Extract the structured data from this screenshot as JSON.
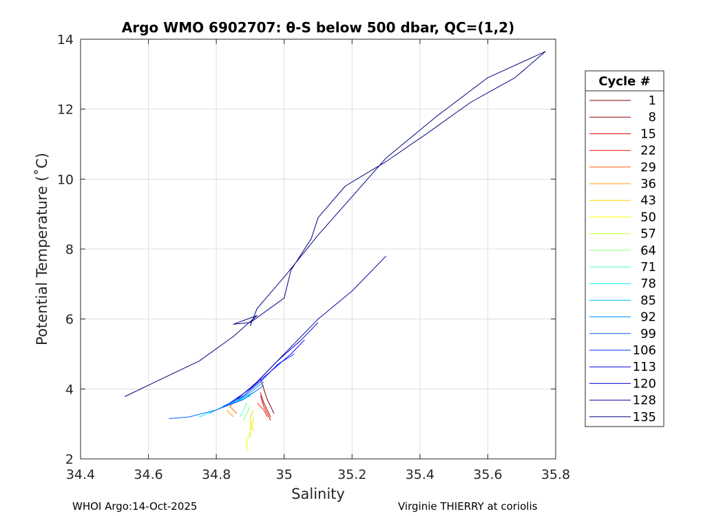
{
  "footer": {
    "left": "WHOI Argo:14-Oct-2025",
    "right": "Virginie THIERRY at coriolis"
  },
  "chart_data": {
    "type": "line",
    "title": "Argo WMO 6902707: θ-S below 500 dbar,  QC=(1,2)",
    "xlabel": "Salinity",
    "ylabel": "Potential Temperature (˚C)",
    "xlim": [
      34.4,
      35.8
    ],
    "ylim": [
      2,
      14
    ],
    "xticks": [
      "34.4",
      "34.6",
      "34.8",
      "35",
      "35.2",
      "35.4",
      "35.6",
      "35.8"
    ],
    "yticks": [
      "2",
      "4",
      "6",
      "8",
      "10",
      "12",
      "14"
    ],
    "grid": true,
    "legend_position": "right",
    "legend_title": "Cycle #",
    "series": [
      {
        "name": "1",
        "color": "#7f0000",
        "points": [
          [
            34.97,
            3.3
          ],
          [
            34.96,
            3.5
          ],
          [
            34.95,
            3.7
          ],
          [
            34.94,
            4.0
          ],
          [
            34.93,
            4.3
          ]
        ]
      },
      {
        "name": "8",
        "color": "#a00000",
        "points": [
          [
            34.96,
            3.2
          ],
          [
            34.95,
            3.4
          ],
          [
            34.94,
            3.6
          ],
          [
            34.93,
            3.9
          ]
        ]
      },
      {
        "name": "15",
        "color": "#d40000",
        "points": [
          [
            34.96,
            3.1
          ],
          [
            34.95,
            3.3
          ],
          [
            34.94,
            3.5
          ],
          [
            34.93,
            3.8
          ]
        ]
      },
      {
        "name": "22",
        "color": "#ff1a00",
        "points": [
          [
            34.95,
            3.2
          ],
          [
            34.94,
            3.4
          ],
          [
            34.92,
            3.6
          ]
        ]
      },
      {
        "name": "29",
        "color": "#ff5a00",
        "points": [
          [
            34.86,
            3.3
          ],
          [
            34.85,
            3.4
          ],
          [
            34.84,
            3.5
          ],
          [
            34.85,
            3.6
          ]
        ]
      },
      {
        "name": "36",
        "color": "#ff9a00",
        "points": [
          [
            34.85,
            3.2
          ],
          [
            34.84,
            3.3
          ],
          [
            34.83,
            3.4
          ]
        ]
      },
      {
        "name": "43",
        "color": "#ffd000",
        "points": [
          [
            34.91,
            2.8
          ],
          [
            34.9,
            3.0
          ],
          [
            34.9,
            3.2
          ],
          [
            34.91,
            3.4
          ]
        ]
      },
      {
        "name": "50",
        "color": "#ffff00",
        "points": [
          [
            34.89,
            2.2
          ],
          [
            34.89,
            2.5
          ],
          [
            34.9,
            2.8
          ],
          [
            34.91,
            3.1
          ]
        ]
      },
      {
        "name": "57",
        "color": "#c0ff40",
        "points": [
          [
            34.9,
            2.6
          ],
          [
            34.9,
            2.9
          ],
          [
            34.91,
            3.2
          ]
        ]
      },
      {
        "name": "64",
        "color": "#80ff80",
        "points": [
          [
            34.88,
            3.1
          ],
          [
            34.89,
            3.3
          ],
          [
            34.9,
            3.5
          ]
        ]
      },
      {
        "name": "71",
        "color": "#40ffbf",
        "points": [
          [
            34.87,
            3.2
          ],
          [
            34.88,
            3.4
          ],
          [
            34.89,
            3.6
          ]
        ]
      },
      {
        "name": "78",
        "color": "#00f0ff",
        "points": [
          [
            34.75,
            3.2
          ],
          [
            34.8,
            3.4
          ],
          [
            34.85,
            3.6
          ],
          [
            34.9,
            3.8
          ]
        ]
      },
      {
        "name": "85",
        "color": "#00c0ff",
        "points": [
          [
            34.78,
            3.3
          ],
          [
            34.82,
            3.5
          ],
          [
            34.87,
            3.7
          ],
          [
            34.91,
            3.9
          ]
        ]
      },
      {
        "name": "92",
        "color": "#0090ff",
        "points": [
          [
            34.8,
            3.4
          ],
          [
            34.85,
            3.6
          ],
          [
            34.9,
            3.9
          ],
          [
            34.94,
            4.2
          ]
        ]
      },
      {
        "name": "99",
        "color": "#0060ff",
        "points": [
          [
            34.66,
            3.15
          ],
          [
            34.72,
            3.2
          ],
          [
            34.8,
            3.4
          ],
          [
            34.88,
            3.7
          ],
          [
            34.94,
            4.1
          ]
        ]
      },
      {
        "name": "106",
        "color": "#0030ff",
        "points": [
          [
            34.82,
            3.5
          ],
          [
            34.88,
            3.8
          ],
          [
            34.93,
            4.2
          ],
          [
            34.98,
            4.7
          ],
          [
            35.03,
            5.0
          ]
        ]
      },
      {
        "name": "113",
        "color": "#0000ff",
        "points": [
          [
            34.84,
            3.6
          ],
          [
            34.9,
            4.0
          ],
          [
            34.96,
            4.5
          ],
          [
            35.02,
            5.0
          ],
          [
            35.06,
            5.4
          ]
        ]
      },
      {
        "name": "120",
        "color": "#0000d0",
        "points": [
          [
            34.86,
            3.7
          ],
          [
            34.92,
            4.2
          ],
          [
            34.98,
            4.8
          ],
          [
            35.05,
            5.4
          ],
          [
            35.1,
            5.9
          ]
        ]
      },
      {
        "name": "128",
        "color": "#0000a0",
        "points": [
          [
            34.9,
            4.0
          ],
          [
            34.96,
            4.6
          ],
          [
            35.03,
            5.3
          ],
          [
            35.1,
            6.0
          ],
          [
            35.2,
            6.8
          ],
          [
            35.3,
            7.8
          ]
        ]
      },
      {
        "name": "135",
        "color": "#000080",
        "points": [
          [
            34.53,
            3.78
          ],
          [
            34.62,
            4.2
          ],
          [
            34.75,
            4.8
          ],
          [
            34.85,
            5.5
          ],
          [
            34.92,
            6.1
          ],
          [
            34.85,
            5.85
          ],
          [
            34.9,
            5.9
          ],
          [
            35.0,
            6.6
          ],
          [
            35.02,
            7.4
          ],
          [
            35.08,
            8.3
          ],
          [
            35.1,
            8.9
          ],
          [
            35.18,
            9.8
          ],
          [
            35.3,
            10.5
          ],
          [
            35.42,
            11.3
          ],
          [
            35.55,
            12.2
          ],
          [
            35.68,
            12.9
          ],
          [
            35.77,
            13.65
          ],
          [
            35.6,
            12.9
          ],
          [
            35.45,
            11.8
          ],
          [
            35.3,
            10.6
          ],
          [
            35.2,
            9.5
          ],
          [
            35.1,
            8.4
          ],
          [
            35.0,
            7.2
          ],
          [
            34.92,
            6.3
          ],
          [
            34.9,
            5.8
          ]
        ]
      }
    ]
  }
}
